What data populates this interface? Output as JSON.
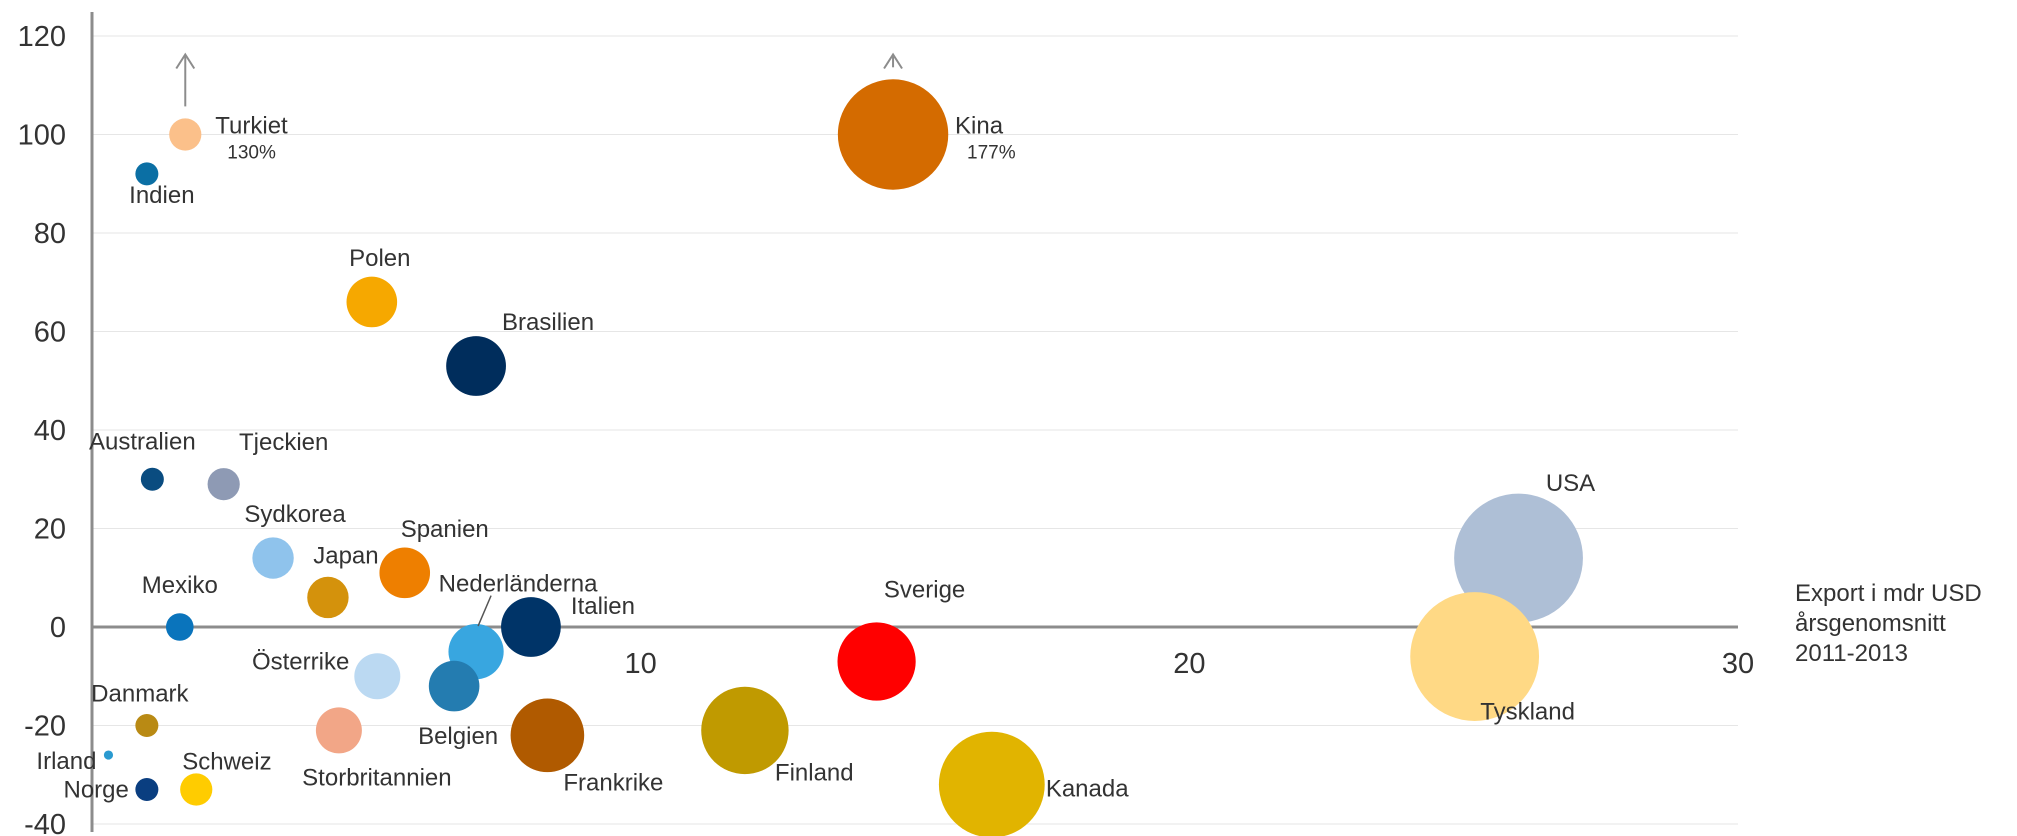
{
  "chart_data": {
    "type": "scatter",
    "xlabel_lines": [
      "Export i mdr USD",
      "årsgenomsnitt",
      "2011-2013"
    ],
    "ylabel": "",
    "xlim": [
      0,
      30
    ],
    "ylim": [
      -40,
      120
    ],
    "x_ticks": [
      "10",
      "20",
      "30"
    ],
    "y_ticks": [
      "-40",
      "-20",
      "0",
      "20",
      "40",
      "60",
      "80",
      "100",
      "120"
    ],
    "grid": "horizontal",
    "points": [
      {
        "name": "Turkiet",
        "x": 1.7,
        "y": 100,
        "size": 0.7,
        "color": "#FBC08A",
        "note": "130%",
        "arrow": true
      },
      {
        "name": "Indien",
        "x": 1.0,
        "y": 92,
        "size": 0.5,
        "color": "#0B6FA4"
      },
      {
        "name": "Kina",
        "x": 14.6,
        "y": 100,
        "size": 2.4,
        "color": "#D46B00",
        "note": "177%",
        "arrow": true
      },
      {
        "name": "Polen",
        "x": 5.1,
        "y": 66,
        "size": 1.1,
        "color": "#F6A800"
      },
      {
        "name": "Brasilien",
        "x": 7.0,
        "y": 53,
        "size": 1.3,
        "color": "#002D5C"
      },
      {
        "name": "Australien",
        "x": 1.1,
        "y": 30,
        "size": 0.5,
        "color": "#0A4C80"
      },
      {
        "name": "Tjeckien",
        "x": 2.4,
        "y": 29,
        "size": 0.7,
        "color": "#8E9AB4"
      },
      {
        "name": "Sydkorea",
        "x": 3.3,
        "y": 14,
        "size": 0.9,
        "color": "#8FC3EC"
      },
      {
        "name": "Spanien",
        "x": 5.7,
        "y": 11,
        "size": 1.1,
        "color": "#EE7F00"
      },
      {
        "name": "Japan",
        "x": 4.3,
        "y": 6,
        "size": 0.9,
        "color": "#D4920C"
      },
      {
        "name": "Mexiko",
        "x": 1.6,
        "y": 0,
        "size": 0.6,
        "color": "#0A74BC"
      },
      {
        "name": "Nederländerna",
        "x": 7.0,
        "y": -5,
        "size": 1.2,
        "color": "#38A6E0"
      },
      {
        "name": "Italien",
        "x": 8.0,
        "y": 0,
        "size": 1.3,
        "color": "#003468"
      },
      {
        "name": "Österrike",
        "x": 5.2,
        "y": -10,
        "size": 1.0,
        "color": "#BBD9F2"
      },
      {
        "name": "Belgien",
        "x": 6.6,
        "y": -12,
        "size": 1.1,
        "color": "#247CB0"
      },
      {
        "name": "Sverige",
        "x": 14.3,
        "y": -7,
        "size": 1.7,
        "color": "#FF0000"
      },
      {
        "name": "USA",
        "x": 26.0,
        "y": 14,
        "size": 2.8,
        "color": "#AEBFD6"
      },
      {
        "name": "Tyskland",
        "x": 25.2,
        "y": -6,
        "size": 2.8,
        "color": "#FFD985"
      },
      {
        "name": "Danmark",
        "x": 1.0,
        "y": -20,
        "size": 0.5,
        "color": "#B98A14"
      },
      {
        "name": "Storbritannien",
        "x": 4.5,
        "y": -21,
        "size": 1.0,
        "color": "#F2A687"
      },
      {
        "name": "Frankrike",
        "x": 8.3,
        "y": -22,
        "size": 1.6,
        "color": "#B05A00"
      },
      {
        "name": "Finland",
        "x": 11.9,
        "y": -21,
        "size": 1.9,
        "color": "#C09A00"
      },
      {
        "name": "Kanada",
        "x": 16.4,
        "y": -32,
        "size": 2.3,
        "color": "#E1B400"
      },
      {
        "name": "Irland",
        "x": 0.3,
        "y": -26,
        "size": 0.2,
        "color": "#2A9AD0"
      },
      {
        "name": "Norge",
        "x": 1.0,
        "y": -33,
        "size": 0.5,
        "color": "#0A3E80"
      },
      {
        "name": "Schweiz",
        "x": 1.9,
        "y": -33,
        "size": 0.7,
        "color": "#FFCC00"
      }
    ]
  }
}
